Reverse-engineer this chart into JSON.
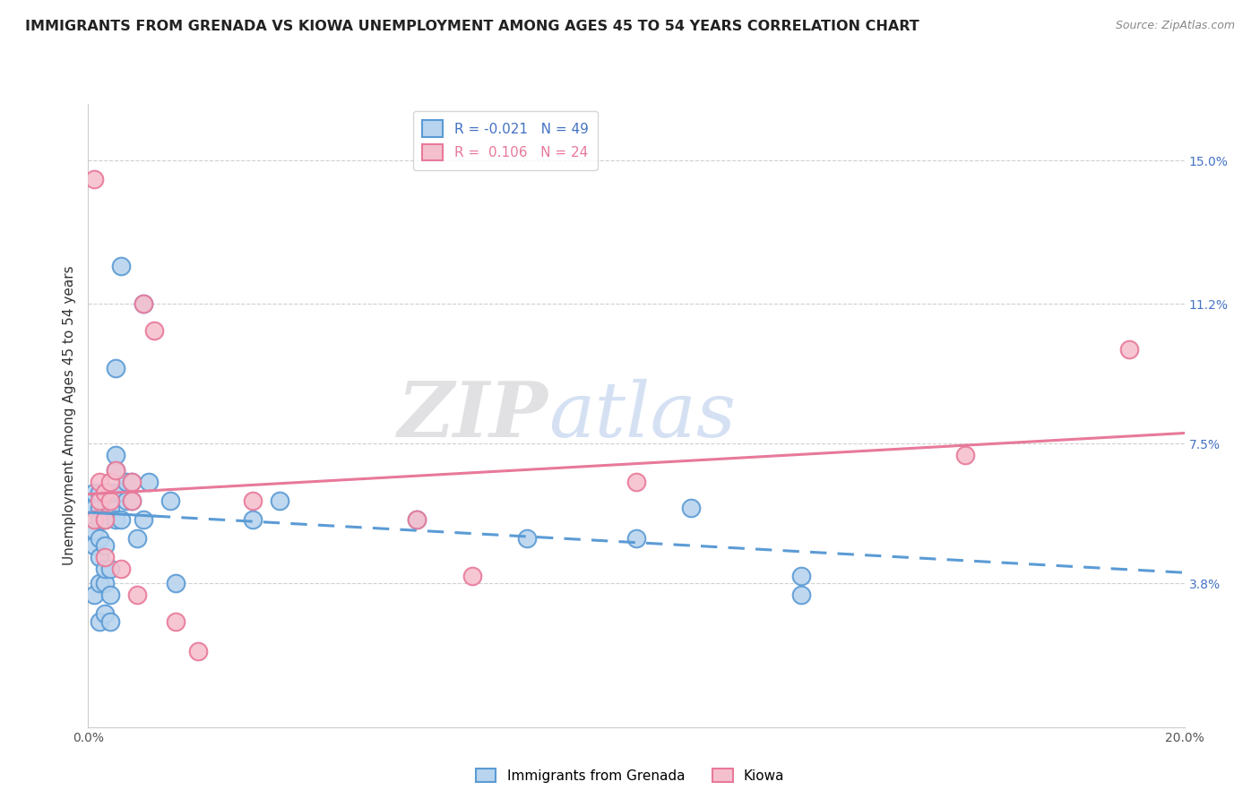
{
  "title": "IMMIGRANTS FROM GRENADA VS KIOWA UNEMPLOYMENT AMONG AGES 45 TO 54 YEARS CORRELATION CHART",
  "source": "Source: ZipAtlas.com",
  "ylabel": "Unemployment Among Ages 45 to 54 years",
  "xlim": [
    0.0,
    0.2
  ],
  "ylim": [
    0.0,
    0.165
  ],
  "xticks": [
    0.0,
    0.04,
    0.08,
    0.12,
    0.16,
    0.2
  ],
  "xticklabels": [
    "0.0%",
    "",
    "",
    "",
    "",
    "20.0%"
  ],
  "ytick_right_labels": [
    "15.0%",
    "11.2%",
    "7.5%",
    "3.8%"
  ],
  "ytick_right_values": [
    0.15,
    0.112,
    0.075,
    0.038
  ],
  "series1_label": "Immigrants from Grenada",
  "series1_color": "#b8d4ee",
  "series1_edge_color": "#5b9bd5",
  "series1_R": -0.021,
  "series1_N": 49,
  "series2_label": "Kiowa",
  "series2_color": "#f5c0ce",
  "series2_edge_color": "#e8799a",
  "series2_R": 0.106,
  "series2_N": 24,
  "series1_x": [
    0.001,
    0.001,
    0.001,
    0.001,
    0.001,
    0.002,
    0.002,
    0.002,
    0.002,
    0.002,
    0.002,
    0.002,
    0.003,
    0.003,
    0.003,
    0.003,
    0.003,
    0.003,
    0.004,
    0.004,
    0.004,
    0.004,
    0.004,
    0.005,
    0.005,
    0.005,
    0.005,
    0.005,
    0.006,
    0.006,
    0.006,
    0.007,
    0.007,
    0.008,
    0.008,
    0.009,
    0.01,
    0.01,
    0.011,
    0.015,
    0.016,
    0.03,
    0.035,
    0.06,
    0.08,
    0.1,
    0.11,
    0.13,
    0.13
  ],
  "series1_y": [
    0.035,
    0.048,
    0.052,
    0.058,
    0.062,
    0.028,
    0.038,
    0.045,
    0.05,
    0.055,
    0.058,
    0.062,
    0.03,
    0.038,
    0.042,
    0.048,
    0.055,
    0.062,
    0.028,
    0.035,
    0.042,
    0.058,
    0.062,
    0.055,
    0.062,
    0.068,
    0.072,
    0.095,
    0.055,
    0.062,
    0.122,
    0.06,
    0.065,
    0.06,
    0.065,
    0.05,
    0.055,
    0.112,
    0.065,
    0.06,
    0.038,
    0.055,
    0.06,
    0.055,
    0.05,
    0.05,
    0.058,
    0.04,
    0.035
  ],
  "series2_x": [
    0.001,
    0.001,
    0.002,
    0.002,
    0.003,
    0.003,
    0.003,
    0.004,
    0.004,
    0.005,
    0.006,
    0.008,
    0.008,
    0.009,
    0.01,
    0.012,
    0.016,
    0.02,
    0.03,
    0.06,
    0.07,
    0.1,
    0.16,
    0.19
  ],
  "series2_y": [
    0.055,
    0.145,
    0.06,
    0.065,
    0.045,
    0.055,
    0.062,
    0.06,
    0.065,
    0.068,
    0.042,
    0.06,
    0.065,
    0.035,
    0.112,
    0.105,
    0.028,
    0.02,
    0.06,
    0.055,
    0.04,
    0.065,
    0.072,
    0.1
  ],
  "title_fontsize": 11.5,
  "axis_label_fontsize": 11,
  "tick_fontsize": 10,
  "legend_fontsize": 11,
  "background_color": "#ffffff",
  "grid_color": "#d0d0d0"
}
